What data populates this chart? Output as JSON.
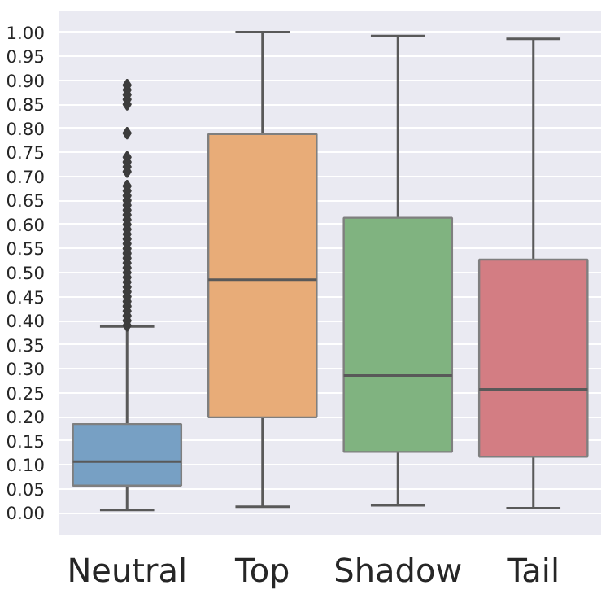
{
  "chart_data": {
    "type": "box",
    "categories": [
      "Neutral",
      "Top",
      "Shadow",
      "Tail"
    ],
    "colors": [
      "#77a0c4",
      "#e8ac78",
      "#80b380",
      "#d37d83"
    ],
    "boxes": [
      {
        "low": 0.006,
        "q1": 0.057,
        "median": 0.107,
        "q3": 0.185,
        "high": 0.388,
        "outliers": [
          0.39,
          0.4,
          0.41,
          0.42,
          0.43,
          0.44,
          0.45,
          0.46,
          0.47,
          0.48,
          0.49,
          0.5,
          0.51,
          0.52,
          0.53,
          0.54,
          0.55,
          0.56,
          0.57,
          0.58,
          0.59,
          0.6,
          0.61,
          0.62,
          0.63,
          0.64,
          0.65,
          0.66,
          0.67,
          0.68,
          0.71,
          0.72,
          0.73,
          0.74,
          0.79,
          0.85,
          0.86,
          0.87,
          0.88,
          0.89
        ]
      },
      {
        "low": 0.013,
        "q1": 0.199,
        "median": 0.485,
        "q3": 0.788,
        "high": 1.0
      },
      {
        "low": 0.016,
        "q1": 0.127,
        "median": 0.286,
        "q3": 0.614,
        "high": 0.992
      },
      {
        "low": 0.01,
        "q1": 0.117,
        "median": 0.257,
        "q3": 0.527,
        "high": 0.986
      }
    ],
    "ylim": [
      -0.045,
      1.045
    ],
    "yticks": [
      {
        "value": 0,
        "label": "0.00"
      },
      {
        "value": 0.05,
        "label": "0.05"
      },
      {
        "value": 0.1,
        "label": "0.10"
      },
      {
        "value": 0.15,
        "label": "0.15"
      },
      {
        "value": 0.2,
        "label": "0.20"
      },
      {
        "value": 0.25,
        "label": "0.25"
      },
      {
        "value": 0.3,
        "label": "0.30"
      },
      {
        "value": 0.35,
        "label": "0.35"
      },
      {
        "value": 0.4,
        "label": "0.40"
      },
      {
        "value": 0.45,
        "label": "0.45"
      },
      {
        "value": 0.5,
        "label": "0.50"
      },
      {
        "value": 0.55,
        "label": "0.55"
      },
      {
        "value": 0.6,
        "label": "0.60"
      },
      {
        "value": 0.65,
        "label": "0.65"
      },
      {
        "value": 0.7,
        "label": "0.70"
      },
      {
        "value": 0.75,
        "label": "0.75"
      },
      {
        "value": 0.8,
        "label": "0.80"
      },
      {
        "value": 0.85,
        "label": "0.85"
      },
      {
        "value": 0.9,
        "label": "0.90"
      },
      {
        "value": 0.95,
        "label": "0.95"
      },
      {
        "value": 1.0,
        "label": "1.00"
      }
    ],
    "grid": "y",
    "marker": "diamond"
  }
}
